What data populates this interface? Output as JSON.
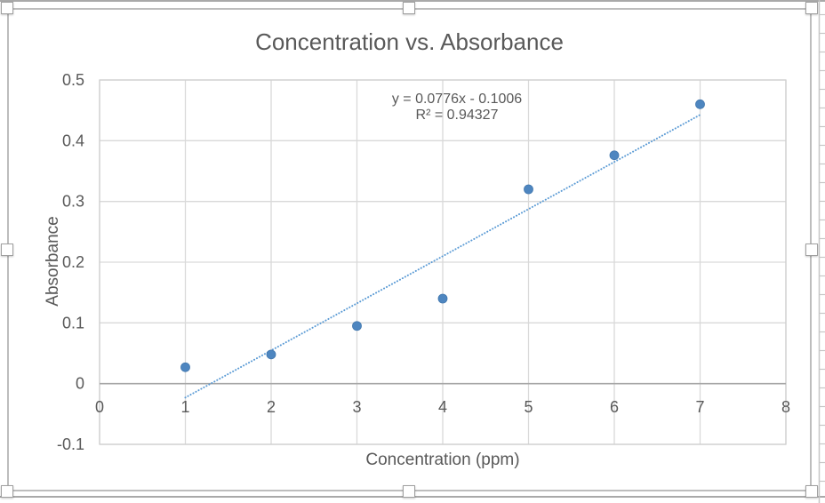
{
  "chart_data": {
    "type": "scatter",
    "title": "Concentration vs. Absorbance",
    "xlabel": "Concentration (ppm)",
    "ylabel": "Absorbance",
    "x": [
      1,
      2,
      3,
      4,
      5,
      6,
      7
    ],
    "y": [
      0.027,
      0.048,
      0.095,
      0.14,
      0.32,
      0.376,
      0.46
    ],
    "xlim": [
      0,
      8
    ],
    "ylim": [
      -0.1,
      0.5
    ],
    "xticks": {
      "values": [
        0,
        1,
        2,
        3,
        4,
        5,
        6,
        7,
        8
      ],
      "labels": [
        "0",
        "1",
        "2",
        "3",
        "4",
        "5",
        "6",
        "7",
        "8"
      ]
    },
    "yticks": {
      "values": [
        -0.1,
        0,
        0.1,
        0.2,
        0.3,
        0.4,
        0.5
      ],
      "labels": [
        "-0.1",
        "0",
        "0.1",
        "0.2",
        "0.3",
        "0.4",
        "0.5"
      ]
    },
    "grid": true,
    "legend": "none",
    "trendline": {
      "style": "dotted",
      "slope": 0.0776,
      "intercept": -0.1006,
      "x_start": 1,
      "x_end": 7,
      "equation_label": "y = 0.0776x - 0.1006",
      "r_squared_label": "R² = 0.94327"
    },
    "colors": {
      "marker": "#4e86c0",
      "marker_edge": "#4177ae",
      "trendline": "#5b9bd5",
      "gridline": "#d9d9d9",
      "plot_border": "#cfcfcf",
      "axis_line": "#a6a6a6",
      "text": "#595959"
    }
  }
}
